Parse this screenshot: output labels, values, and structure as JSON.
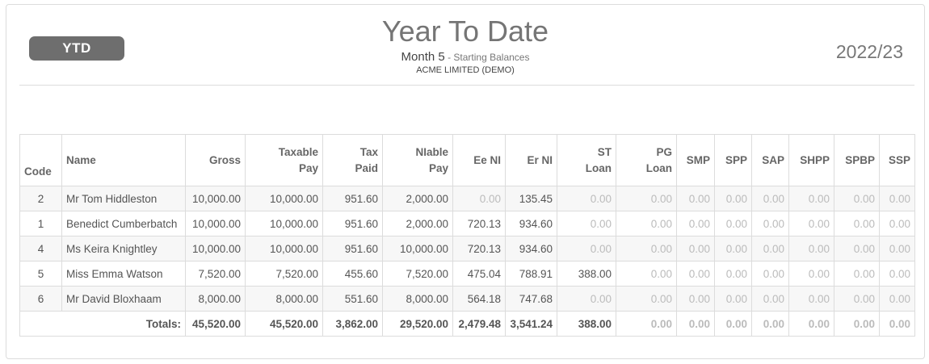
{
  "header": {
    "badge": "YTD",
    "title": "Year To Date",
    "month": "Month 5",
    "subtitle_sep": " - ",
    "subtitle_note": "Starting Balances",
    "company": "ACME LIMITED (DEMO)",
    "tax_year": "2022/23"
  },
  "table": {
    "columns": [
      {
        "key": "code",
        "line1": "",
        "line2": "Code"
      },
      {
        "key": "name",
        "line1": "Name",
        "line2": ""
      },
      {
        "key": "gross",
        "line1": "Gross",
        "line2": ""
      },
      {
        "key": "taxable_pay",
        "line1": "Taxable",
        "line2": "Pay"
      },
      {
        "key": "tax_paid",
        "line1": "Tax",
        "line2": "Paid"
      },
      {
        "key": "niable_pay",
        "line1": "NIable",
        "line2": "Pay"
      },
      {
        "key": "ee_ni",
        "line1": "Ee NI",
        "line2": ""
      },
      {
        "key": "er_ni",
        "line1": "Er NI",
        "line2": ""
      },
      {
        "key": "st_loan",
        "line1": "ST",
        "line2": "Loan"
      },
      {
        "key": "pg_loan",
        "line1": "PG",
        "line2": "Loan"
      },
      {
        "key": "smp",
        "line1": "SMP",
        "line2": ""
      },
      {
        "key": "spp",
        "line1": "SPP",
        "line2": ""
      },
      {
        "key": "sap",
        "line1": "SAP",
        "line2": ""
      },
      {
        "key": "shpp",
        "line1": "SHPP",
        "line2": ""
      },
      {
        "key": "spbp",
        "line1": "SPBP",
        "line2": ""
      },
      {
        "key": "ssp",
        "line1": "SSP",
        "line2": ""
      }
    ],
    "rows": [
      [
        "2",
        "Mr Tom Hiddleston",
        "10,000.00",
        "10,000.00",
        "951.60",
        "2,000.00",
        "0.00",
        "135.45",
        "0.00",
        "0.00",
        "0.00",
        "0.00",
        "0.00",
        "0.00",
        "0.00",
        "0.00"
      ],
      [
        "1",
        "Benedict Cumberbatch",
        "10,000.00",
        "10,000.00",
        "951.60",
        "2,000.00",
        "720.13",
        "934.60",
        "0.00",
        "0.00",
        "0.00",
        "0.00",
        "0.00",
        "0.00",
        "0.00",
        "0.00"
      ],
      [
        "4",
        "Ms Keira Knightley",
        "10,000.00",
        "10,000.00",
        "951.60",
        "10,000.00",
        "720.13",
        "934.60",
        "0.00",
        "0.00",
        "0.00",
        "0.00",
        "0.00",
        "0.00",
        "0.00",
        "0.00"
      ],
      [
        "5",
        "Miss Emma Watson",
        "7,520.00",
        "7,520.00",
        "455.60",
        "7,520.00",
        "475.04",
        "788.91",
        "388.00",
        "0.00",
        "0.00",
        "0.00",
        "0.00",
        "0.00",
        "0.00",
        "0.00"
      ],
      [
        "6",
        "Mr David Bloxhaam",
        "8,000.00",
        "8,000.00",
        "551.60",
        "8,000.00",
        "564.18",
        "747.68",
        "0.00",
        "0.00",
        "0.00",
        "0.00",
        "0.00",
        "0.00",
        "0.00",
        "0.00"
      ]
    ],
    "totals_label": "Totals:",
    "totals": [
      "45,520.00",
      "45,520.00",
      "3,862.00",
      "29,520.00",
      "2,479.48",
      "3,541.24",
      "388.00",
      "0.00",
      "0.00",
      "0.00",
      "0.00",
      "0.00",
      "0.00",
      "0.00"
    ]
  }
}
